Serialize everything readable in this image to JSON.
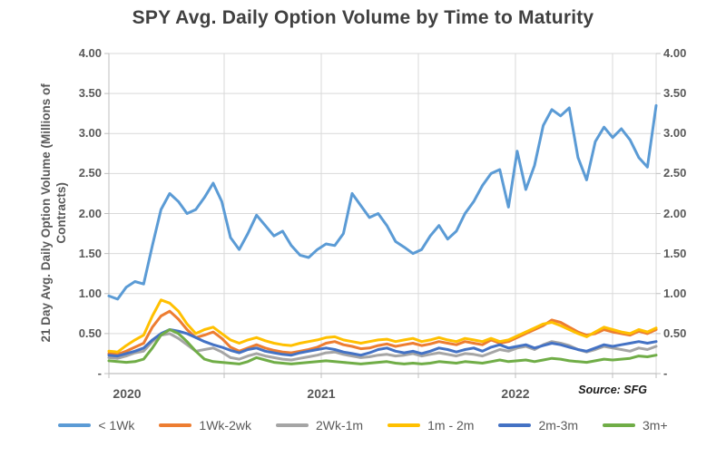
{
  "title": "SPY Avg. Daily Option Volume by Time to Maturity",
  "source_note": "Source: SFG",
  "y_axis": {
    "title_line1": "21 Day Avg. Daily Option Volume (Millions of",
    "title_line2": "Contracts)",
    "tick_labels": [
      "4.00",
      "3.50",
      "3.00",
      "2.50",
      "2.00",
      "1.50",
      "1.00",
      "0.50",
      "-"
    ]
  },
  "x_axis": {
    "year_labels": [
      "2020",
      "2021",
      "2022"
    ]
  },
  "colors": {
    "grid": "#D9D9D9",
    "axis": "#BFBFBF",
    "title_text": "#404040",
    "tick_text": "#595959"
  },
  "chart_data": {
    "type": "line",
    "title": "SPY Avg. Daily Option Volume by Time to Maturity",
    "xlabel": "",
    "ylabel": "21 Day Avg. Daily Option Volume (Millions of Contracts)",
    "ylim": [
      0,
      4
    ],
    "y_tick_step": 0.5,
    "x_start": "2020-01",
    "x_end": "2022-08",
    "x_interval": "semi-monthly",
    "grid": true,
    "legend_position": "bottom",
    "source": "Source: SFG",
    "series": [
      {
        "name": "< 1Wk",
        "color": "#5B9BD5",
        "values": [
          0.97,
          0.93,
          1.08,
          1.15,
          1.12,
          1.6,
          2.05,
          2.25,
          2.15,
          2.0,
          2.05,
          2.2,
          2.38,
          2.15,
          1.7,
          1.55,
          1.75,
          1.98,
          1.85,
          1.72,
          1.78,
          1.6,
          1.48,
          1.45,
          1.55,
          1.62,
          1.6,
          1.75,
          2.25,
          2.1,
          1.95,
          2.0,
          1.85,
          1.65,
          1.58,
          1.5,
          1.55,
          1.72,
          1.85,
          1.68,
          1.78,
          2.0,
          2.15,
          2.35,
          2.5,
          2.55,
          2.08,
          2.78,
          2.3,
          2.6,
          3.1,
          3.3,
          3.22,
          3.32,
          2.7,
          2.42,
          2.9,
          3.08,
          2.95,
          3.06,
          2.92,
          2.7,
          2.58,
          3.35
        ]
      },
      {
        "name": "1Wk-2wk",
        "color": "#ED7D31",
        "values": [
          0.25,
          0.24,
          0.28,
          0.33,
          0.38,
          0.58,
          0.72,
          0.78,
          0.68,
          0.55,
          0.45,
          0.48,
          0.52,
          0.44,
          0.33,
          0.28,
          0.32,
          0.36,
          0.32,
          0.29,
          0.27,
          0.26,
          0.28,
          0.3,
          0.33,
          0.38,
          0.4,
          0.36,
          0.34,
          0.31,
          0.32,
          0.35,
          0.37,
          0.34,
          0.36,
          0.38,
          0.35,
          0.37,
          0.4,
          0.38,
          0.36,
          0.4,
          0.38,
          0.36,
          0.42,
          0.38,
          0.4,
          0.45,
          0.5,
          0.55,
          0.6,
          0.67,
          0.64,
          0.58,
          0.52,
          0.48,
          0.5,
          0.55,
          0.52,
          0.5,
          0.48,
          0.53,
          0.5,
          0.55
        ]
      },
      {
        "name": "2Wk-1m",
        "color": "#A5A5A5",
        "values": [
          0.2,
          0.19,
          0.22,
          0.26,
          0.28,
          0.4,
          0.48,
          0.5,
          0.44,
          0.36,
          0.28,
          0.3,
          0.32,
          0.27,
          0.2,
          0.18,
          0.22,
          0.25,
          0.22,
          0.2,
          0.18,
          0.17,
          0.19,
          0.21,
          0.23,
          0.26,
          0.27,
          0.24,
          0.22,
          0.2,
          0.21,
          0.23,
          0.24,
          0.22,
          0.23,
          0.25,
          0.22,
          0.24,
          0.26,
          0.24,
          0.22,
          0.25,
          0.24,
          0.22,
          0.26,
          0.3,
          0.28,
          0.32,
          0.34,
          0.3,
          0.36,
          0.4,
          0.38,
          0.35,
          0.3,
          0.27,
          0.3,
          0.34,
          0.32,
          0.3,
          0.28,
          0.32,
          0.3,
          0.34
        ]
      },
      {
        "name": "1m - 2m",
        "color": "#FFC000",
        "values": [
          0.28,
          0.27,
          0.35,
          0.42,
          0.48,
          0.72,
          0.92,
          0.88,
          0.78,
          0.62,
          0.5,
          0.55,
          0.58,
          0.5,
          0.42,
          0.38,
          0.42,
          0.45,
          0.41,
          0.38,
          0.36,
          0.35,
          0.38,
          0.4,
          0.42,
          0.45,
          0.46,
          0.42,
          0.4,
          0.38,
          0.4,
          0.42,
          0.43,
          0.4,
          0.42,
          0.44,
          0.4,
          0.42,
          0.45,
          0.42,
          0.4,
          0.44,
          0.42,
          0.4,
          0.44,
          0.4,
          0.42,
          0.47,
          0.52,
          0.57,
          0.62,
          0.64,
          0.6,
          0.55,
          0.5,
          0.46,
          0.52,
          0.58,
          0.55,
          0.52,
          0.5,
          0.55,
          0.52,
          0.57
        ]
      },
      {
        "name": "2m-3m",
        "color": "#4472C4",
        "values": [
          0.23,
          0.22,
          0.25,
          0.28,
          0.32,
          0.42,
          0.5,
          0.55,
          0.53,
          0.5,
          0.45,
          0.4,
          0.36,
          0.33,
          0.29,
          0.26,
          0.3,
          0.32,
          0.28,
          0.26,
          0.24,
          0.23,
          0.26,
          0.28,
          0.3,
          0.32,
          0.3,
          0.27,
          0.25,
          0.23,
          0.26,
          0.3,
          0.32,
          0.28,
          0.26,
          0.28,
          0.25,
          0.28,
          0.32,
          0.3,
          0.27,
          0.3,
          0.32,
          0.28,
          0.33,
          0.36,
          0.32,
          0.34,
          0.36,
          0.32,
          0.35,
          0.38,
          0.36,
          0.33,
          0.3,
          0.28,
          0.32,
          0.36,
          0.34,
          0.36,
          0.38,
          0.4,
          0.38,
          0.4
        ]
      },
      {
        "name": "3m+",
        "color": "#70AD47",
        "values": [
          0.16,
          0.15,
          0.14,
          0.15,
          0.18,
          0.32,
          0.48,
          0.55,
          0.5,
          0.4,
          0.28,
          0.18,
          0.15,
          0.14,
          0.13,
          0.12,
          0.15,
          0.2,
          0.17,
          0.14,
          0.13,
          0.12,
          0.13,
          0.14,
          0.15,
          0.16,
          0.15,
          0.14,
          0.13,
          0.12,
          0.13,
          0.14,
          0.15,
          0.13,
          0.12,
          0.13,
          0.12,
          0.13,
          0.15,
          0.14,
          0.13,
          0.15,
          0.14,
          0.13,
          0.15,
          0.17,
          0.15,
          0.16,
          0.17,
          0.15,
          0.17,
          0.19,
          0.18,
          0.16,
          0.15,
          0.14,
          0.16,
          0.18,
          0.17,
          0.18,
          0.19,
          0.22,
          0.21,
          0.23
        ]
      }
    ]
  }
}
